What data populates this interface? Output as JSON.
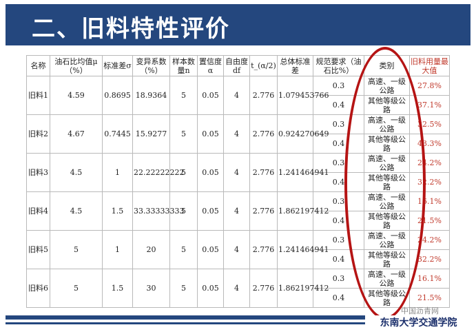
{
  "slide": {
    "title": "二、旧料特性评价",
    "watermark": "中国沥青网",
    "brand": "东南大学交通学院"
  },
  "table": {
    "headers": [
      "名称",
      "油石比均值μ（%）",
      "标准差σ",
      "变异系数（%）",
      "样本数量n",
      "置信度α",
      "自由度df",
      "t_(α/2)",
      "总体标准差",
      "规范要求（油石比%）",
      "类别",
      "旧料用量最大值"
    ],
    "rows": [
      {
        "name": "旧料1",
        "mean": "4.59",
        "std": "0.8695",
        "cv": "18.9364",
        "n": "5",
        "alpha": "0.05",
        "df": "4",
        "t": "2.776",
        "pop_std": "1.079453766",
        "req": [
          "0.3",
          "0.4"
        ],
        "cat": [
          "高速、一级公路",
          "其他等级公路"
        ],
        "max": [
          "27.8%",
          "37.1%"
        ]
      },
      {
        "name": "旧料2",
        "mean": "4.67",
        "std": "0.7445",
        "cv": "15.9277",
        "n": "5",
        "alpha": "0.05",
        "df": "4",
        "t": "2.776",
        "pop_std": "0.924270649",
        "req": [
          "0.3",
          "0.4"
        ],
        "cat": [
          "高速、一级公路",
          "其他等级公路"
        ],
        "max": [
          "32.5%",
          "43.3%"
        ]
      },
      {
        "name": "旧料3",
        "mean": "4.5",
        "std": "1",
        "cv": "22.22222222",
        "n": "5",
        "alpha": "0.05",
        "df": "4",
        "t": "2.776",
        "pop_std": "1.241464941",
        "req": [
          "0.3",
          "0.4"
        ],
        "cat": [
          "高速、一级公路",
          "其他等级公路"
        ],
        "max": [
          "24.2%",
          "32.2%"
        ]
      },
      {
        "name": "旧料4",
        "mean": "4.5",
        "std": "1.5",
        "cv": "33.33333333",
        "n": "5",
        "alpha": "0.05",
        "df": "4",
        "t": "2.776",
        "pop_std": "1.862197412",
        "req": [
          "0.3",
          "0.4"
        ],
        "cat": [
          "高速、一级公路",
          "其他等级公路"
        ],
        "max": [
          "16.1%",
          "21.5%"
        ]
      },
      {
        "name": "旧料5",
        "mean": "5",
        "std": "1",
        "cv": "20",
        "n": "5",
        "alpha": "0.05",
        "df": "4",
        "t": "2.776",
        "pop_std": "1.241464941",
        "req": [
          "0.3",
          "0.4"
        ],
        "cat": [
          "高速、一级公路",
          "其他等级公路"
        ],
        "max": [
          "24.2%",
          "32.2%"
        ]
      },
      {
        "name": "旧料6",
        "mean": "5",
        "std": "1.5",
        "cv": "30",
        "n": "5",
        "alpha": "0.05",
        "df": "4",
        "t": "2.776",
        "pop_std": "1.862197412",
        "req": [
          "0.3",
          "0.4"
        ],
        "cat": [
          "高速、一级公路",
          "其他等级公路"
        ],
        "max": [
          "16.1%",
          "21.5%"
        ]
      }
    ]
  },
  "colors": {
    "header_bg": "#24477e",
    "accent_red": "#b51414",
    "value_red": "#c0392b"
  }
}
